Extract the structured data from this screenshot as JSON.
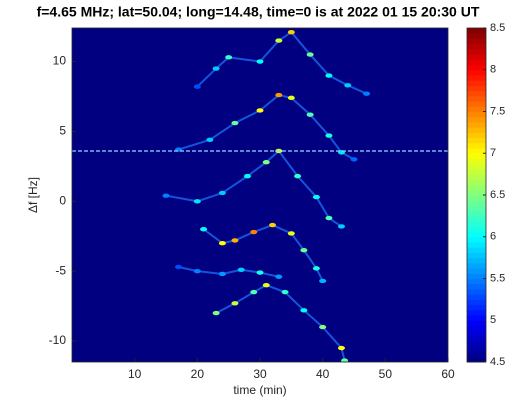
{
  "chart_data": {
    "type": "spectrogram",
    "title": "f=4.65 MHz;  lat=50.04; long=14.48, time=0 is at 2022 01 15 20:30 UT",
    "x_label": "time (min)",
    "y_label": "Δf [Hz]",
    "xlim": [
      0,
      60
    ],
    "xticks": [
      10,
      20,
      30,
      40,
      50,
      60
    ],
    "ylim": [
      -11.5,
      12.4
    ],
    "yticks": [
      -10,
      -5,
      0,
      5,
      10
    ],
    "clim": [
      4.5,
      8.5
    ],
    "cticks": [
      4.5,
      5,
      5.5,
      6,
      6.5,
      7,
      7.5,
      8,
      8.5
    ],
    "colormap": "jet",
    "hline": 3.6,
    "hline_color": "#8fd8ff",
    "series": [
      {
        "color": "#1e78ff",
        "x": [
          20,
          23,
          25,
          30,
          33,
          35,
          38,
          41,
          44,
          47
        ],
        "y": [
          8.2,
          9.5,
          10.3,
          10,
          11.5,
          12.1,
          10.5,
          9,
          8.3,
          7.7
        ],
        "values": [
          5.3,
          5.8,
          6.2,
          6.0,
          6.8,
          7.2,
          6.4,
          6.0,
          5.8,
          5.5
        ]
      },
      {
        "color": "#1e78ff",
        "x": [
          17,
          22,
          26,
          30,
          33,
          35,
          38,
          41,
          43,
          45
        ],
        "y": [
          3.7,
          4.4,
          5.6,
          6.5,
          7.6,
          7.4,
          6.2,
          4.7,
          3.5,
          3
        ],
        "values": [
          5.5,
          5.8,
          6.4,
          7.0,
          7.4,
          6.9,
          6.3,
          6.1,
          5.9,
          5.4
        ]
      },
      {
        "color": "#1e78ff",
        "x": [
          15,
          20,
          24,
          28,
          31,
          33,
          36,
          39,
          41,
          43
        ],
        "y": [
          0.4,
          0,
          0.6,
          1.8,
          2.8,
          3.6,
          1.8,
          0.3,
          -1.2,
          -1.8
        ],
        "values": [
          5.5,
          5.9,
          5.8,
          6.0,
          6.5,
          6.8,
          6.2,
          6.0,
          6.3,
          5.8
        ]
      },
      {
        "color": "#1e78ff",
        "x": [
          21,
          24,
          26,
          29,
          32,
          35,
          37,
          39,
          40
        ],
        "y": [
          -2,
          -3,
          -2.8,
          -2.2,
          -1.7,
          -2.3,
          -3.5,
          -4.8,
          -5.7
        ],
        "values": [
          6.0,
          7.0,
          7.3,
          7.5,
          7.2,
          6.9,
          6.4,
          6.1,
          5.7
        ]
      },
      {
        "color": "#1e78ff",
        "x": [
          17,
          20,
          24,
          27,
          30,
          33
        ],
        "y": [
          -4.7,
          -5,
          -5.2,
          -4.9,
          -5.1,
          -5.4
        ],
        "values": [
          5.3,
          5.5,
          5.6,
          5.8,
          6.1,
          5.6
        ]
      },
      {
        "color": "#1e78ff",
        "x": [
          23,
          26,
          29,
          31,
          34,
          37,
          40,
          43,
          43.5
        ],
        "y": [
          -8,
          -7.3,
          -6.5,
          -6,
          -6.5,
          -7.8,
          -9,
          -10.5,
          -11.4
        ],
        "values": [
          6.5,
          6.8,
          6.3,
          6.9,
          6.2,
          6.0,
          6.5,
          7.0,
          6.4
        ]
      }
    ]
  }
}
